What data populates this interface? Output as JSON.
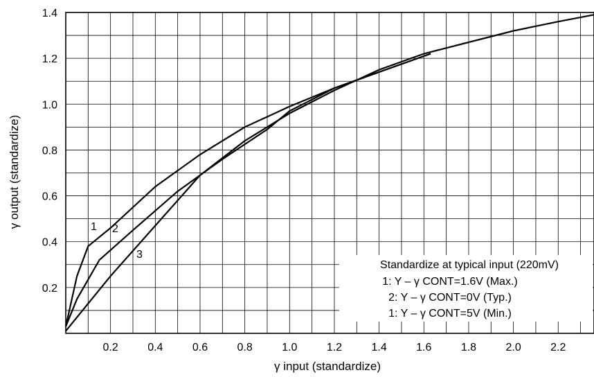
{
  "chart_data": {
    "type": "line",
    "title": "",
    "xlabel": "γ input (standardize)",
    "ylabel": "γ output (standardize)",
    "xlim": [
      0,
      2.36
    ],
    "ylim": [
      0,
      1.4
    ],
    "x_ticks": [
      "0.2",
      "0.4",
      "0.6",
      "0.8",
      "1.0",
      "1.2",
      "1.4",
      "1.6",
      "1.8",
      "2.0",
      "2.2"
    ],
    "y_ticks": [
      "0.2",
      "0.4",
      "0.6",
      "0.8",
      "1.0",
      "1.2",
      "1.4"
    ],
    "grid": true,
    "legend_position": "bottom-right",
    "legend": {
      "title": "Standardize at typical input (220mV)",
      "entries": [
        "1: Y – γ CONT=1.6V (Max.)",
        "2: Y – γ CONT=0V (Typ.)",
        "1: Y – γ CONT=5V (Min.)"
      ]
    },
    "series": [
      {
        "name": "1",
        "x": [
          0,
          0.05,
          0.1,
          0.2,
          0.4,
          0.6,
          0.8,
          1.0,
          1.2,
          1.4,
          1.63
        ],
        "y": [
          0.03,
          0.25,
          0.38,
          0.46,
          0.64,
          0.78,
          0.9,
          0.99,
          1.07,
          1.14,
          1.22
        ]
      },
      {
        "name": "2",
        "x": [
          0,
          0.05,
          0.15,
          0.3,
          0.5,
          0.7,
          0.9,
          1.0,
          1.2,
          1.4,
          1.63
        ],
        "y": [
          0.03,
          0.15,
          0.32,
          0.45,
          0.62,
          0.76,
          0.89,
          0.97,
          1.07,
          1.14,
          1.22
        ]
      },
      {
        "name": "3",
        "x": [
          0,
          0.1,
          0.2,
          0.4,
          0.6,
          0.8,
          1.0,
          1.2,
          1.4,
          1.6,
          1.8,
          2.0,
          2.2,
          2.36
        ],
        "y": [
          0.01,
          0.13,
          0.25,
          0.47,
          0.69,
          0.84,
          0.96,
          1.06,
          1.15,
          1.22,
          1.27,
          1.32,
          1.36,
          1.39
        ]
      }
    ],
    "curve_labels": [
      "1",
      "2",
      "3"
    ]
  }
}
